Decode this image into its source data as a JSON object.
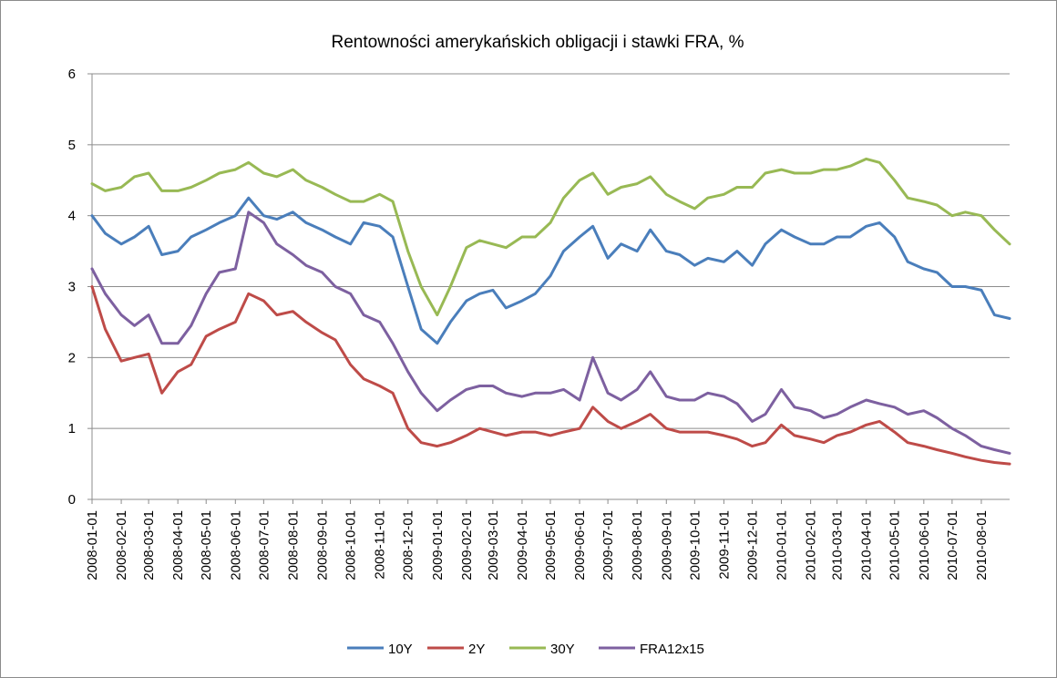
{
  "chart_data": {
    "type": "line",
    "title": "Rentowności amerykańskich obligacji i stawki FRA, %",
    "xlabel": "",
    "ylabel": "",
    "ylim": [
      0,
      6
    ],
    "yticks": [
      "0",
      "1",
      "2",
      "3",
      "4",
      "5",
      "6"
    ],
    "x_tick_labels": [
      "2008-01-01",
      "2008-02-01",
      "2008-03-01",
      "2008-04-01",
      "2008-05-01",
      "2008-06-01",
      "2008-07-01",
      "2008-08-01",
      "2008-09-01",
      "2008-10-01",
      "2008-11-01",
      "2008-12-01",
      "2009-01-01",
      "2009-02-01",
      "2009-03-01",
      "2009-04-01",
      "2009-05-01",
      "2009-06-01",
      "2009-07-01",
      "2009-08-01",
      "2009-09-01",
      "2009-10-01",
      "2009-11-01",
      "2009-12-01",
      "2010-01-01",
      "2010-02-01",
      "2010-03-01",
      "2010-04-01",
      "2010-05-01",
      "2010-06-01",
      "2010-07-01",
      "2010-08-01"
    ],
    "x_range": [
      "2008-01-01",
      "2010-08-31"
    ],
    "grid": true,
    "legend_position": "bottom",
    "x": [
      "2008-01-01",
      "2008-01-15",
      "2008-02-01",
      "2008-02-15",
      "2008-03-01",
      "2008-03-15",
      "2008-04-01",
      "2008-04-15",
      "2008-05-01",
      "2008-05-15",
      "2008-06-01",
      "2008-06-15",
      "2008-07-01",
      "2008-07-15",
      "2008-08-01",
      "2008-08-15",
      "2008-09-01",
      "2008-09-15",
      "2008-10-01",
      "2008-10-15",
      "2008-11-01",
      "2008-11-15",
      "2008-12-01",
      "2008-12-15",
      "2009-01-01",
      "2009-01-15",
      "2009-02-01",
      "2009-02-15",
      "2009-03-01",
      "2009-03-15",
      "2009-04-01",
      "2009-04-15",
      "2009-05-01",
      "2009-05-15",
      "2009-06-01",
      "2009-06-15",
      "2009-07-01",
      "2009-07-15",
      "2009-08-01",
      "2009-08-15",
      "2009-09-01",
      "2009-09-15",
      "2009-10-01",
      "2009-10-15",
      "2009-11-01",
      "2009-11-15",
      "2009-12-01",
      "2009-12-15",
      "2010-01-01",
      "2010-01-15",
      "2010-02-01",
      "2010-02-15",
      "2010-03-01",
      "2010-03-15",
      "2010-04-01",
      "2010-04-15",
      "2010-05-01",
      "2010-05-15",
      "2010-06-01",
      "2010-06-15",
      "2010-07-01",
      "2010-07-15",
      "2010-08-01",
      "2010-08-15",
      "2010-08-31"
    ],
    "series": [
      {
        "name": "10Y",
        "color": "#4a7ebb",
        "values": [
          4.0,
          3.75,
          3.6,
          3.7,
          3.85,
          3.45,
          3.5,
          3.7,
          3.8,
          3.9,
          4.0,
          4.25,
          4.0,
          3.95,
          4.05,
          3.9,
          3.8,
          3.7,
          3.6,
          3.9,
          3.85,
          3.7,
          3.0,
          2.4,
          2.2,
          2.5,
          2.8,
          2.9,
          2.95,
          2.7,
          2.8,
          2.9,
          3.15,
          3.5,
          3.7,
          3.85,
          3.4,
          3.6,
          3.5,
          3.8,
          3.5,
          3.45,
          3.3,
          3.4,
          3.35,
          3.5,
          3.3,
          3.6,
          3.8,
          3.7,
          3.6,
          3.6,
          3.7,
          3.7,
          3.85,
          3.9,
          3.7,
          3.35,
          3.25,
          3.2,
          3.0,
          3.0,
          2.95,
          2.6,
          2.55
        ]
      },
      {
        "name": "2Y",
        "color": "#be4b48",
        "values": [
          3.0,
          2.4,
          1.95,
          2.0,
          2.05,
          1.5,
          1.8,
          1.9,
          2.3,
          2.4,
          2.5,
          2.9,
          2.8,
          2.6,
          2.65,
          2.5,
          2.35,
          2.25,
          1.9,
          1.7,
          1.6,
          1.5,
          1.0,
          0.8,
          0.75,
          0.8,
          0.9,
          1.0,
          0.95,
          0.9,
          0.95,
          0.95,
          0.9,
          0.95,
          1.0,
          1.3,
          1.1,
          1.0,
          1.1,
          1.2,
          1.0,
          0.95,
          0.95,
          0.95,
          0.9,
          0.85,
          0.75,
          0.8,
          1.05,
          0.9,
          0.85,
          0.8,
          0.9,
          0.95,
          1.05,
          1.1,
          0.95,
          0.8,
          0.75,
          0.7,
          0.65,
          0.6,
          0.55,
          0.52,
          0.5
        ]
      },
      {
        "name": "30Y",
        "color": "#98b954",
        "values": [
          4.45,
          4.35,
          4.4,
          4.55,
          4.6,
          4.35,
          4.35,
          4.4,
          4.5,
          4.6,
          4.65,
          4.75,
          4.6,
          4.55,
          4.65,
          4.5,
          4.4,
          4.3,
          4.2,
          4.2,
          4.3,
          4.2,
          3.5,
          3.0,
          2.6,
          3.0,
          3.55,
          3.65,
          3.6,
          3.55,
          3.7,
          3.7,
          3.9,
          4.25,
          4.5,
          4.6,
          4.3,
          4.4,
          4.45,
          4.55,
          4.3,
          4.2,
          4.1,
          4.25,
          4.3,
          4.4,
          4.4,
          4.6,
          4.65,
          4.6,
          4.6,
          4.65,
          4.65,
          4.7,
          4.8,
          4.75,
          4.5,
          4.25,
          4.2,
          4.15,
          4.0,
          4.05,
          4.0,
          3.8,
          3.6
        ]
      },
      {
        "name": "FRA12x15",
        "color": "#7d60a0",
        "values": [
          3.25,
          2.9,
          2.6,
          2.45,
          2.6,
          2.2,
          2.2,
          2.45,
          2.9,
          3.2,
          3.25,
          4.05,
          3.9,
          3.6,
          3.45,
          3.3,
          3.2,
          3.0,
          2.9,
          2.6,
          2.5,
          2.2,
          1.8,
          1.5,
          1.25,
          1.4,
          1.55,
          1.6,
          1.6,
          1.5,
          1.45,
          1.5,
          1.5,
          1.55,
          1.4,
          2.0,
          1.5,
          1.4,
          1.55,
          1.8,
          1.45,
          1.4,
          1.4,
          1.5,
          1.45,
          1.35,
          1.1,
          1.2,
          1.55,
          1.3,
          1.25,
          1.15,
          1.2,
          1.3,
          1.4,
          1.35,
          1.3,
          1.2,
          1.25,
          1.15,
          1.0,
          0.9,
          0.75,
          0.7,
          0.65
        ]
      }
    ]
  }
}
